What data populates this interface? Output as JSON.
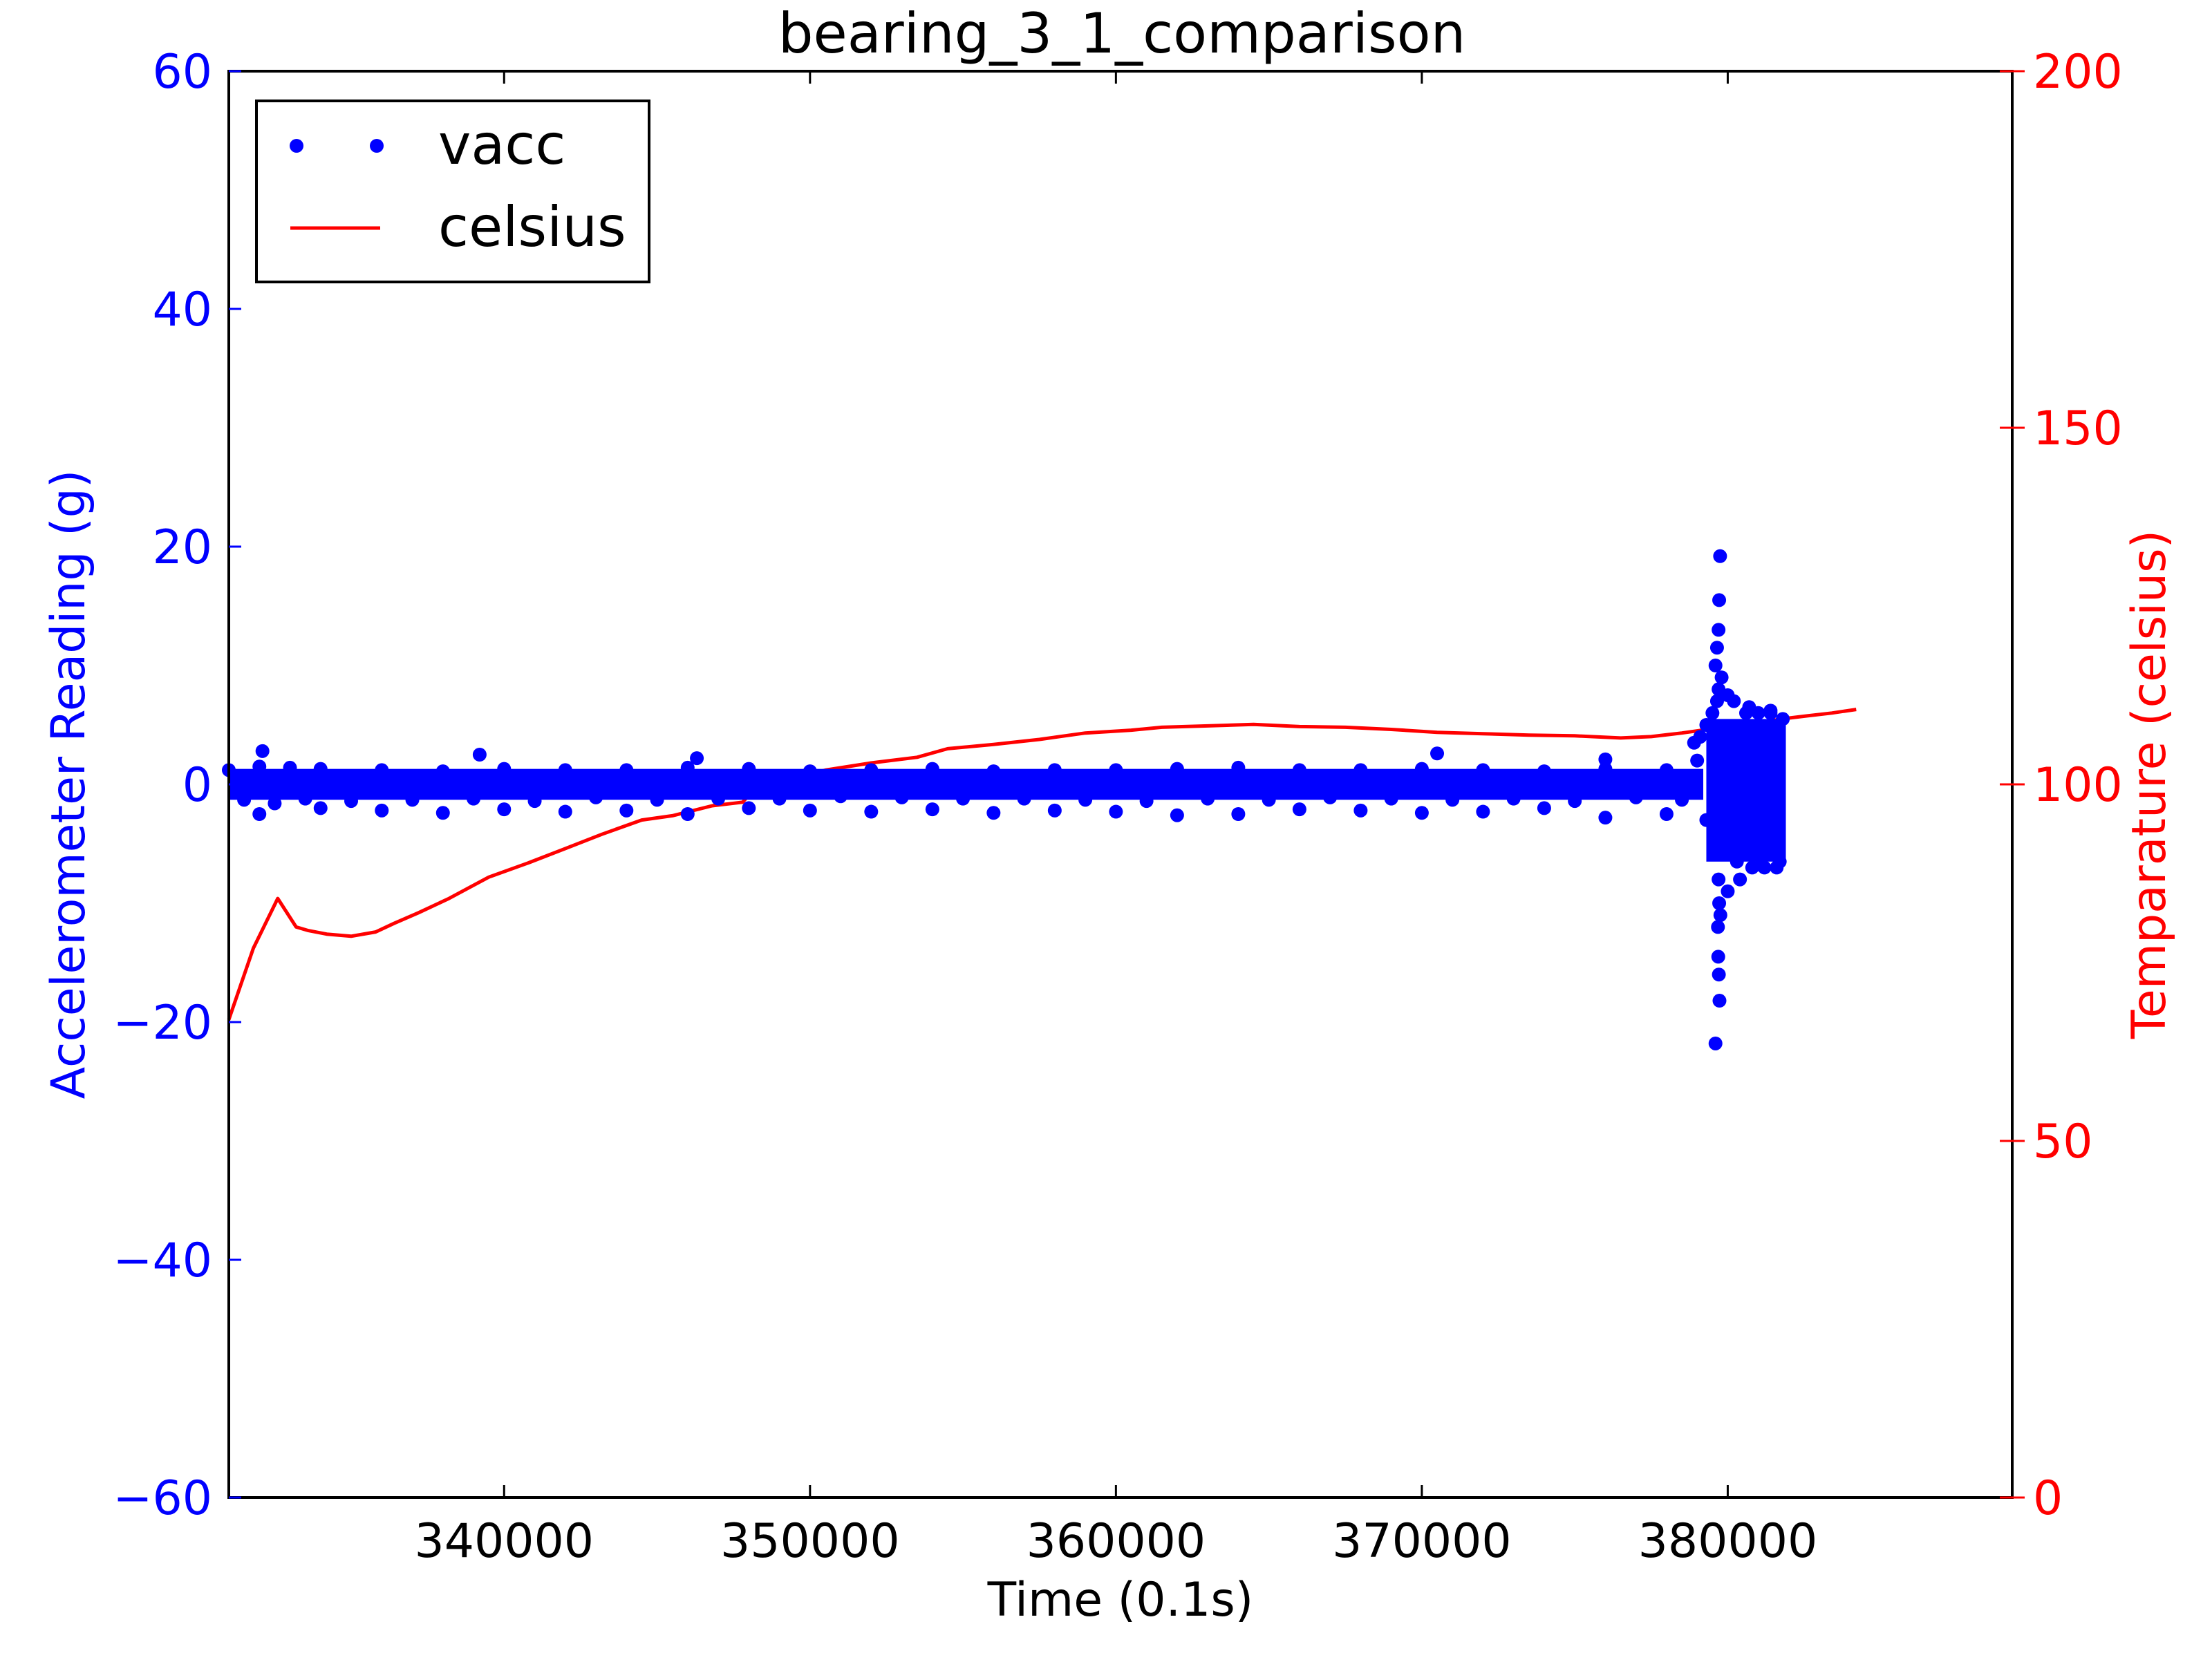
{
  "chart_data": {
    "type": "scatter",
    "title": "bearing_3_1_comparison",
    "xlabel": "Time (0.1s)",
    "ylabel_left": "Accelerometer Reading (g)",
    "ylabel_right": "Temparature (celsius)",
    "xlim": [
      331000,
      389300
    ],
    "ylim_left": [
      -60,
      60
    ],
    "ylim_right": [
      0,
      200
    ],
    "x_ticks": [
      340000,
      350000,
      360000,
      370000,
      380000
    ],
    "x_tick_labels": [
      "340000",
      "350000",
      "360000",
      "370000",
      "380000"
    ],
    "y_ticks_left": [
      -60,
      -40,
      -20,
      0,
      20,
      40,
      60
    ],
    "y_tick_labels_left": [
      "−60",
      "−40",
      "−20",
      "0",
      "20",
      "40",
      "60"
    ],
    "y_ticks_right": [
      0,
      50,
      100,
      150,
      200
    ],
    "y_tick_labels_right": [
      "0",
      "50",
      "100",
      "150",
      "200"
    ],
    "grid": false,
    "legend_position": "upper-left",
    "colors": {
      "vacc": "#0000ff",
      "celsius": "#ff0000"
    },
    "series": [
      {
        "name": "vacc",
        "type": "scatter",
        "axis": "left",
        "x": [
          331000,
          331500,
          332000,
          332500,
          333000,
          333500,
          334000,
          335000,
          336000,
          337000,
          338000,
          339000,
          340000,
          341000,
          342000,
          343000,
          344000,
          345000,
          346000,
          347000,
          348000,
          349000,
          350000,
          351000,
          352000,
          353000,
          354000,
          355000,
          356000,
          357000,
          358000,
          359000,
          360000,
          361000,
          362000,
          363000,
          364000,
          365000,
          366000,
          367000,
          368000,
          369000,
          370000,
          371000,
          372000,
          373000,
          374000,
          375000,
          376000,
          377000,
          378000,
          378500,
          379000,
          379300,
          379500,
          379700,
          379800,
          380000,
          380200,
          380400,
          380600,
          380800,
          381000,
          381200,
          381400,
          381600,
          381800,
          332000,
          334000,
          336000,
          338000,
          340000,
          342000,
          344000,
          346000,
          348000,
          350000,
          352000,
          354000,
          356000,
          358000,
          360000,
          362000,
          364000,
          366000,
          368000,
          370000,
          372000,
          374000,
          376000,
          378000,
          332100,
          339200,
          346300,
          370500,
          376000,
          378900,
          379100,
          379300,
          379600,
          379650,
          379700,
          379720,
          379750,
          379680,
          379690,
          379710,
          379730,
          379600,
          379650,
          379700,
          379720,
          379760,
          380000,
          380300,
          380700,
          381100,
          381400,
          381700
        ],
        "y": [
          1.2,
          -1.3,
          1.5,
          -1.6,
          1.4,
          -1.2,
          1.3,
          -1.4,
          1.2,
          -1.3,
          1.1,
          -1.2,
          1.3,
          -1.4,
          1.2,
          -1.1,
          1.2,
          -1.3,
          1.4,
          -1.2,
          1.3,
          -1.2,
          1.1,
          -1.0,
          1.2,
          -1.1,
          1.3,
          -1.2,
          1.1,
          -1.2,
          1.2,
          -1.3,
          1.2,
          -1.4,
          1.3,
          -1.2,
          1.4,
          -1.3,
          1.2,
          -1.1,
          1.2,
          -1.2,
          1.3,
          -1.3,
          1.2,
          -1.2,
          1.1,
          -1.4,
          1.3,
          -1.1,
          1.2,
          -1.3,
          2.0,
          -3.0,
          6.0,
          -8.0,
          9.0,
          -9.0,
          7.0,
          -8.0,
          6.0,
          -7.0,
          6.0,
          -7.0,
          6.0,
          -7.0,
          5.5,
          -2.5,
          -2.0,
          -2.2,
          -2.4,
          -2.1,
          -2.3,
          -2.2,
          -2.5,
          -2.0,
          -2.2,
          -2.3,
          -2.1,
          -2.4,
          -2.2,
          -2.3,
          -2.6,
          -2.5,
          -2.1,
          -2.2,
          -2.4,
          -2.3,
          -2.0,
          -2.8,
          -2.5,
          2.8,
          2.5,
          2.2,
          2.6,
          2.1,
          3.5,
          4.0,
          5.0,
          10.0,
          11.5,
          13.0,
          15.5,
          19.2,
          -12.0,
          -14.5,
          -16.0,
          -18.2,
          -21.8,
          7.0,
          8.0,
          -10.0,
          -11.0,
          7.5,
          -6.5,
          6.5,
          -6.8,
          6.2,
          -6.5
        ]
      },
      {
        "name": "celsius",
        "type": "line",
        "axis": "right",
        "x": [
          331000,
          331800,
          332600,
          333200,
          333600,
          334200,
          335000,
          335800,
          336400,
          337200,
          338200,
          339500,
          340800,
          342000,
          343200,
          344500,
          345500,
          346800,
          347800,
          348200,
          349000,
          350500,
          352000,
          353500,
          354500,
          356000,
          357500,
          359000,
          360500,
          361500,
          363000,
          364500,
          366000,
          367500,
          369000,
          370500,
          372000,
          373500,
          375000,
          376500,
          377500,
          378500,
          379500,
          380200,
          380600,
          381000,
          381800,
          382600,
          383400,
          384200
        ],
        "y": [
          67.0,
          77.0,
          84.0,
          80.0,
          79.5,
          79.0,
          78.7,
          79.3,
          80.5,
          82.0,
          84.0,
          87.0,
          89.0,
          91.0,
          93.0,
          95.0,
          95.6,
          97.0,
          97.5,
          99.5,
          100.5,
          102.0,
          103.0,
          103.8,
          105.0,
          105.6,
          106.3,
          107.2,
          107.6,
          108.0,
          108.2,
          108.4,
          108.1,
          108.0,
          107.7,
          107.3,
          107.1,
          106.9,
          106.8,
          106.5,
          106.7,
          107.2,
          107.8,
          108.0,
          107.3,
          108.6,
          109.2,
          109.6,
          110.0,
          110.5
        ]
      }
    ]
  }
}
